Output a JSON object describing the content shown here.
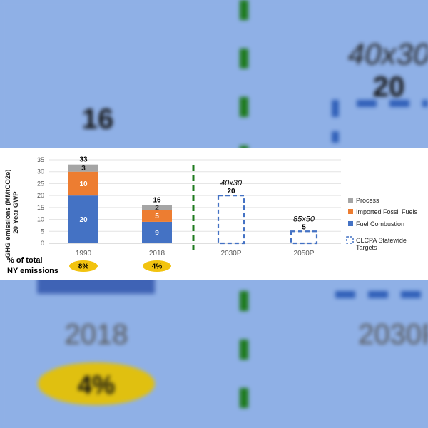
{
  "chart_data": {
    "type": "bar",
    "stacked": true,
    "categories": [
      "1990",
      "2018",
      "2030P",
      "2050P"
    ],
    "ylabel": "GHG emissions (MMtCO2e)\n20-Year GWP",
    "ylabel_lines": [
      "GHG emissions (MMtCO2e)",
      "20-Year GWP"
    ],
    "ylim": [
      0,
      35
    ],
    "yticks": [
      0,
      5,
      10,
      15,
      20,
      25,
      30,
      35
    ],
    "grid": true,
    "legend_position": "right",
    "series": [
      {
        "name": "Fuel Combustion",
        "color": "#4472c4",
        "values": [
          20,
          9,
          null,
          null
        ]
      },
      {
        "name": "Imported Fossil Fuels",
        "color": "#ed7d31",
        "values": [
          10,
          5,
          null,
          null
        ]
      },
      {
        "name": "Process",
        "color": "#a5a5a5",
        "values": [
          3,
          2,
          null,
          null
        ]
      }
    ],
    "segment_labels": [
      [
        "20",
        "10",
        "3"
      ],
      [
        "9",
        "5",
        "2"
      ]
    ],
    "totals": [
      "33",
      "16"
    ],
    "targets": [
      {
        "category": "2030P",
        "name": "40x30",
        "value": 20,
        "label": "20"
      },
      {
        "category": "2050P",
        "name": "85x50",
        "value": 5,
        "label": "5"
      }
    ],
    "target_legend": {
      "name": "CLCPA Statewide Targets",
      "lines": [
        "CLCPA Statewide",
        "Targets"
      ],
      "color": "#4472c4"
    },
    "divider_color": "#1e7a1e",
    "pct_row": {
      "label_lines": [
        "% of total",
        "NY emissions"
      ],
      "values": [
        "8%",
        "4%"
      ],
      "color": "#f2c30f"
    }
  },
  "backdrop": {
    "total_2018": "16",
    "target_name": "40x30",
    "target_value": "20",
    "cat_2018": "2018",
    "cat_2030": "2030P",
    "pct_2018": "4%"
  }
}
